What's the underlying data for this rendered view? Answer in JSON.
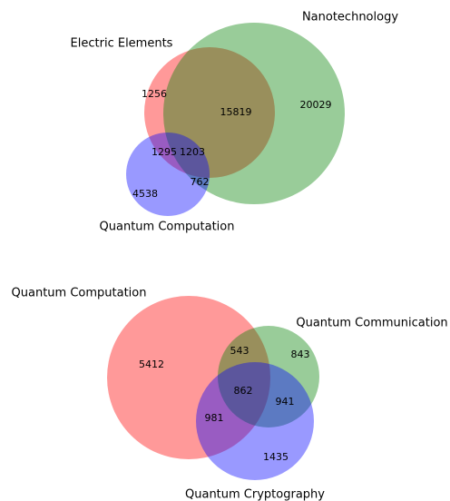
{
  "chart_data": [
    {
      "type": "venn",
      "sets": [
        "Electric Elements",
        "Nanotechnology",
        "Quantum Computation"
      ],
      "colors": [
        "#ff0000",
        "#008000",
        "#0000ff"
      ],
      "values": [
        1256,
        20029,
        15819,
        4538,
        1295,
        762,
        1203
      ]
    },
    {
      "type": "venn",
      "sets": [
        "Quantum Computation",
        "Quantum Communication",
        "Quantum Cryptography"
      ],
      "colors": [
        "#ff0000",
        "#008000",
        "#0000ff"
      ],
      "values": [
        5412,
        843,
        543,
        1435,
        981,
        941,
        862
      ]
    }
  ]
}
